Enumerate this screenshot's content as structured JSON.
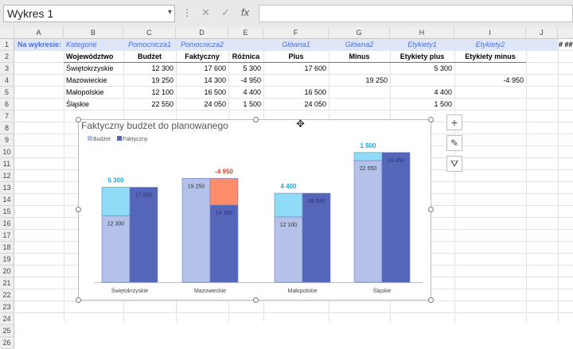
{
  "namebox": {
    "value": "Wykres 1"
  },
  "formula_bar": {
    "dots": "⋮",
    "cancel": "✕",
    "enter": "✓",
    "fx": "fx",
    "value": ""
  },
  "columns": [
    "A",
    "B",
    "C",
    "D",
    "E",
    "F",
    "G",
    "H",
    "I",
    "J"
  ],
  "rows": [
    "1",
    "2",
    "3",
    "4",
    "5",
    "6",
    "7",
    "8",
    "9",
    "10",
    "11",
    "12",
    "13",
    "14",
    "15",
    "16",
    "17",
    "18",
    "19",
    "20",
    "21",
    "22",
    "23",
    "24",
    "25",
    "26"
  ],
  "sheet": {
    "row1": {
      "a": "Na wykresie:",
      "b": "Kategorie",
      "c": "Pomocnicza1",
      "d": "Pomocnicza2",
      "f": "Główna1",
      "g": "Główna2",
      "h": "Etykiety1",
      "i": "Etykiety2",
      "overflow": "# ##"
    },
    "headers": {
      "b": "Województwo",
      "c": "Budżet",
      "d": "Faktyczny",
      "e": "Różnica",
      "f": "Plus",
      "g": "Minus",
      "h": "Etykiety plus",
      "i": "Etykiety minus"
    },
    "data": [
      {
        "b": "Świętokrzyskie",
        "c": "12 300",
        "d": "17 600",
        "e": "5 300",
        "f": "17 600",
        "g": "",
        "h": "5 300",
        "i": ""
      },
      {
        "b": "Mazowieckie",
        "c": "19 250",
        "d": "14 300",
        "e": "-4 950",
        "f": "",
        "g": "19 250",
        "h": "",
        "i": "-4 950"
      },
      {
        "b": "Małopolskie",
        "c": "12 100",
        "d": "16 500",
        "e": "4 400",
        "f": "16 500",
        "g": "",
        "h": "4 400",
        "i": ""
      },
      {
        "b": "Śląskie",
        "c": "22 550",
        "d": "24 050",
        "e": "1 500",
        "f": "24 050",
        "g": "",
        "h": "1 500",
        "i": ""
      }
    ]
  },
  "chart_data": {
    "type": "bar",
    "title": "Faktyczny budżet do planowanego",
    "legend": [
      "Budżet",
      "Faktyczny"
    ],
    "categories": [
      "Świętokrzyskie",
      "Mazowieckie",
      "Małopolskie",
      "Śląskie"
    ],
    "series": [
      {
        "name": "Budżet",
        "values": [
          12300,
          19250,
          12100,
          22550
        ],
        "labels": [
          "12 300",
          "19 250",
          "12 100",
          "22 550"
        ]
      },
      {
        "name": "Faktyczny",
        "values": [
          17600,
          14300,
          16500,
          24050
        ],
        "labels": [
          "17 600",
          "14 300",
          "16 500",
          "24 050"
        ]
      }
    ],
    "differences": [
      5300,
      -4950,
      4400,
      1500
    ],
    "difference_labels": [
      "5 300",
      "-4 950",
      "4 400",
      "1 500"
    ],
    "colors": {
      "budzet": "#b4c2ea",
      "faktyczny": "#5566b8",
      "plus": "#8fdcf6",
      "minus": "#fc8d6a",
      "plus_label": "#22a4dc",
      "minus_label": "#d8401a"
    },
    "ylim": [
      0,
      28000
    ],
    "xlabel": "",
    "ylabel": ""
  },
  "side_buttons": {
    "add": "+",
    "style": "✎",
    "filter": "⛛"
  }
}
